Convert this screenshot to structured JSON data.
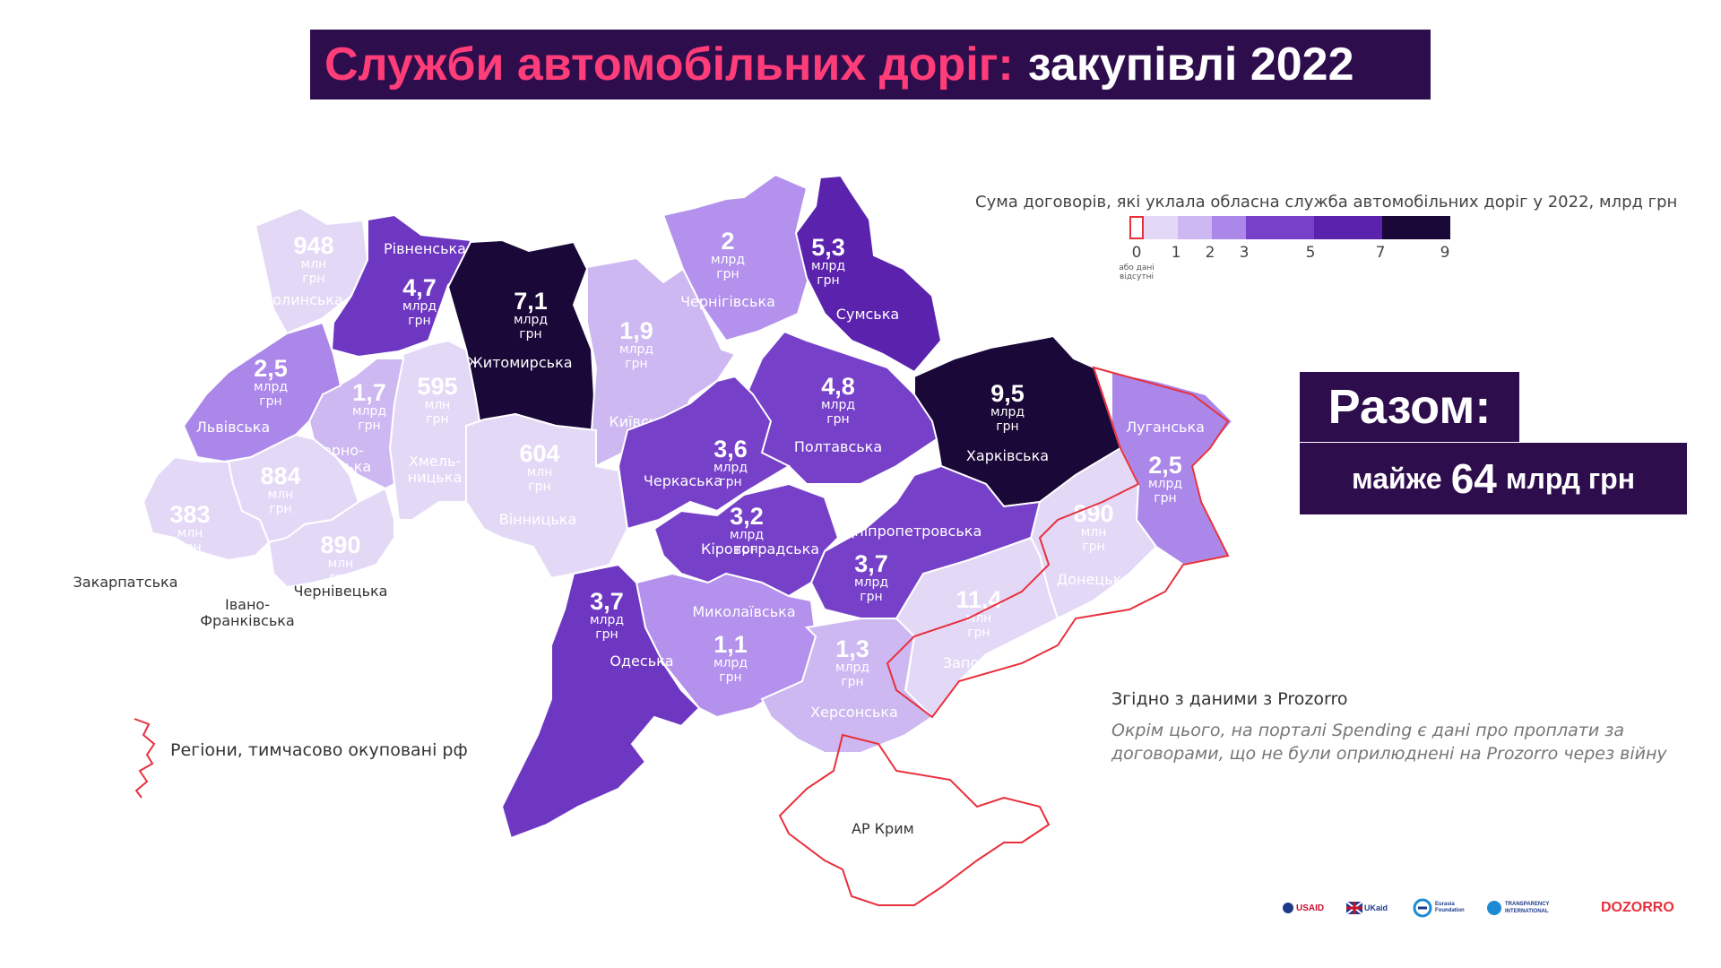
{
  "title": {
    "accent": "Служби автомобільних доріг:",
    "rest": "закупівлі 2022"
  },
  "legend": {
    "caption": "Сума договорів, які уклала обласна служба автомобільних доріг у 2022, млрд грн",
    "ticks": [
      "0",
      "1",
      "2",
      "3",
      "5",
      "7",
      "9"
    ],
    "note": "або дані відсутні",
    "colors": [
      "#ffffff",
      "#e3d9f7",
      "#cdb8f1",
      "#ab87ea",
      "#7641c8",
      "#5a22ad",
      "#1a0838"
    ]
  },
  "total": {
    "line1": "Разом:",
    "pre": "майже",
    "num": "64",
    "post": "млрд грн"
  },
  "source": "Згідно з даними з Prozorro",
  "note": "Окрім цього, на порталі Spending є дані про проплати за договорами, що не були оприлюднені на Prozorro через війну",
  "occupied_label": "Регіони, тимчасово окуповані рф",
  "crimea_label": "АР Крим",
  "regions": [
    {
      "name": "Волинська",
      "value": "948",
      "unit1": "млн",
      "unit2": "грн",
      "color": "#e3d9f7"
    },
    {
      "name": "Рівненська",
      "value": "4,7",
      "unit1": "млрд",
      "unit2": "грн",
      "color": "#6e37c2"
    },
    {
      "name": "Житомирська",
      "value": "7,1",
      "unit1": "млрд",
      "unit2": "грн",
      "color": "#1a0838"
    },
    {
      "name": "Київська",
      "value": "1,9",
      "unit1": "млрд",
      "unit2": "грн",
      "color": "#cdb8f1"
    },
    {
      "name": "Чернігівська",
      "value": "2",
      "unit1": "млрд",
      "unit2": "грн",
      "color": "#b391ec"
    },
    {
      "name": "Сумська",
      "value": "5,3",
      "unit1": "млрд",
      "unit2": "грн",
      "color": "#5a22ad"
    },
    {
      "name": "Харківська",
      "value": "9,5",
      "unit1": "млрд",
      "unit2": "грн",
      "color": "#1a0838"
    },
    {
      "name": "Луганська",
      "value": "2,5",
      "unit1": "млрд",
      "unit2": "грн",
      "color": "#ab87ea"
    },
    {
      "name": "Донецька",
      "value": "890",
      "unit1": "млн",
      "unit2": "грн",
      "color": "#e3d9f7"
    },
    {
      "name": "Запорізька",
      "value": "11,4",
      "unit1": "млн",
      "unit2": "грн",
      "color": "#e3d9f7"
    },
    {
      "name": "Дніпропетровська",
      "value": "3,7",
      "unit1": "млрд",
      "unit2": "грн",
      "color": "#7641c8"
    },
    {
      "name": "Полтавська",
      "value": "4,8",
      "unit1": "млрд",
      "unit2": "грн",
      "color": "#7641c8"
    },
    {
      "name": "Черкаська",
      "value": "3,6",
      "unit1": "млрд",
      "unit2": "грн",
      "color": "#7641c8"
    },
    {
      "name": "Кіровоградська",
      "value": "3,2",
      "unit1": "млрд",
      "unit2": "грн",
      "color": "#7641c8"
    },
    {
      "name": "Миколаївська",
      "value": "1,1",
      "unit1": "млрд",
      "unit2": "грн",
      "color": "#b391ec"
    },
    {
      "name": "Херсонська",
      "value": "1,3",
      "unit1": "млрд",
      "unit2": "грн",
      "color": "#cdb8f1"
    },
    {
      "name": "Одеська",
      "value": "3,7",
      "unit1": "млрд",
      "unit2": "грн",
      "color": "#6e37c2"
    },
    {
      "name": "Вінницька",
      "value": "604",
      "unit1": "млн",
      "unit2": "грн",
      "color": "#e3d9f7"
    },
    {
      "name": "Хмель-\nницька",
      "value": "595",
      "unit1": "млн",
      "unit2": "грн",
      "color": "#e3d9f7"
    },
    {
      "name": "Терно-\nпільська",
      "value": "1,7",
      "unit1": "млрд",
      "unit2": "грн",
      "color": "#cdb8f1"
    },
    {
      "name": "Львівська",
      "value": "2,5",
      "unit1": "млрд",
      "unit2": "грн",
      "color": "#ab87ea"
    },
    {
      "name": "Закарпатська",
      "value": "383",
      "unit1": "млн",
      "unit2": "грн",
      "color": "#e3d9f7"
    },
    {
      "name": "Івано-\nФранківська",
      "value": "884",
      "unit1": "млн",
      "unit2": "грн",
      "color": "#e3d9f7"
    },
    {
      "name": "Чернівецька",
      "value": "890",
      "unit1": "млн",
      "unit2": "грн",
      "color": "#e3d9f7"
    }
  ],
  "logos": [
    "USAID",
    "UKaid",
    "Eurasia Foundation",
    "TRANSPARENCY INTERNATIONAL",
    "DOZORRO"
  ]
}
